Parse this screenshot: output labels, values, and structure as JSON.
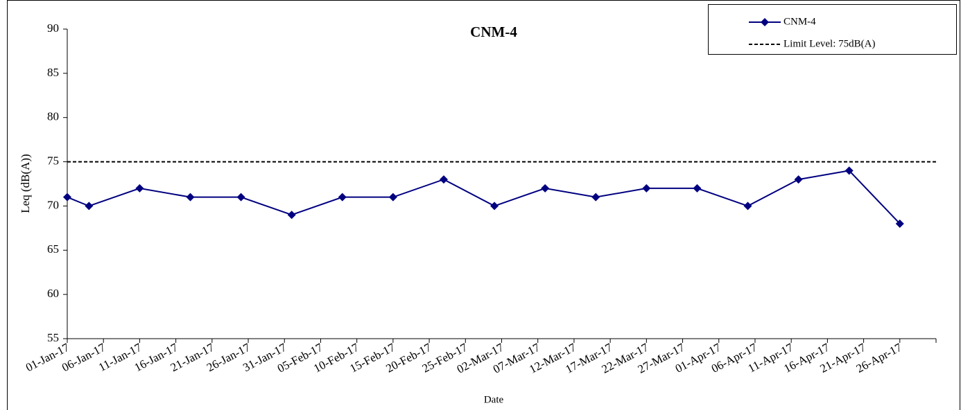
{
  "chart_data": {
    "type": "line",
    "title": "CNM-4",
    "x_label": "Date",
    "y_label": "Leq (dB(A))",
    "x": [
      "2017-01-01",
      "2017-01-04",
      "2017-01-11",
      "2017-01-18",
      "2017-01-25",
      "2017-02-01",
      "2017-02-08",
      "2017-02-15",
      "2017-02-22",
      "2017-03-01",
      "2017-03-08",
      "2017-03-15",
      "2017-03-22",
      "2017-03-29",
      "2017-04-05",
      "2017-04-12",
      "2017-04-19",
      "2017-04-26"
    ],
    "series": [
      {
        "name": "CNM-4",
        "color": "#000080",
        "marker": "diamond",
        "values": [
          71,
          70,
          72,
          71,
          71,
          69,
          71,
          71,
          73,
          70,
          72,
          71,
          72,
          72,
          70,
          73,
          74,
          68
        ]
      }
    ],
    "hlines": [
      {
        "name": "Limit Level: 75dB(A)",
        "value": 75,
        "color": "#000000",
        "style": "dashed"
      }
    ],
    "xlim": [
      "2017-01-01",
      "2017-05-01"
    ],
    "xticks": [
      {
        "value": "2017-01-01",
        "label": "01-Jan-17"
      },
      {
        "value": "2017-01-06",
        "label": "06-Jan-17"
      },
      {
        "value": "2017-01-11",
        "label": "11-Jan-17"
      },
      {
        "value": "2017-01-16",
        "label": "16-Jan-17"
      },
      {
        "value": "2017-01-21",
        "label": "21-Jan-17"
      },
      {
        "value": "2017-01-26",
        "label": "26-Jan-17"
      },
      {
        "value": "2017-01-31",
        "label": "31-Jan-17"
      },
      {
        "value": "2017-02-05",
        "label": "05-Feb-17"
      },
      {
        "value": "2017-02-10",
        "label": "10-Feb-17"
      },
      {
        "value": "2017-02-15",
        "label": "15-Feb-17"
      },
      {
        "value": "2017-02-20",
        "label": "20-Feb-17"
      },
      {
        "value": "2017-02-25",
        "label": "25-Feb-17"
      },
      {
        "value": "2017-03-02",
        "label": "02-Mar-17"
      },
      {
        "value": "2017-03-07",
        "label": "07-Mar-17"
      },
      {
        "value": "2017-03-12",
        "label": "12-Mar-17"
      },
      {
        "value": "2017-03-17",
        "label": "17-Mar-17"
      },
      {
        "value": "2017-03-22",
        "label": "22-Mar-17"
      },
      {
        "value": "2017-03-27",
        "label": "27-Mar-17"
      },
      {
        "value": "2017-04-01",
        "label": "01-Apr-17"
      },
      {
        "value": "2017-04-06",
        "label": "06-Apr-17"
      },
      {
        "value": "2017-04-11",
        "label": "11-Apr-17"
      },
      {
        "value": "2017-04-16",
        "label": "16-Apr-17"
      },
      {
        "value": "2017-04-21",
        "label": "21-Apr-17"
      },
      {
        "value": "2017-04-26",
        "label": "26-Apr-17"
      }
    ],
    "ylim": [
      55,
      90
    ],
    "yticks": [
      55,
      60,
      65,
      70,
      75,
      80,
      85,
      90
    ],
    "grid": false,
    "legend": "top-right"
  }
}
